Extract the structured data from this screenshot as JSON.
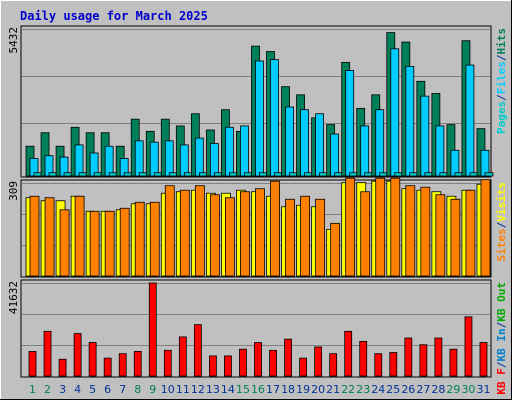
{
  "title": "Daily usage for March 2025",
  "colors": {
    "background": "#C0C0C0",
    "panel": "#C0C0C0",
    "grid": "#808080",
    "title": "#0000CC",
    "day_weekday": "#003399",
    "day_weekend": "#00805A",
    "hits": "#00805A",
    "files": "#00CCFF",
    "pages": "#00CCCC",
    "visits": "#FFFF00",
    "sites": "#FF8000",
    "kbin": "#0080CC",
    "kbout": "#00AA00",
    "kbf": "#FF0000"
  },
  "chart_data": [
    {
      "type": "bar",
      "name": "hits-files-pages",
      "axis_max_label": "5432",
      "ymax": 5432,
      "legend": [
        {
          "label": "Pages",
          "color": "#00CCCC"
        },
        {
          "label": "/",
          "color": "#003399"
        },
        {
          "label": "Files",
          "color": "#00CCFF"
        },
        {
          "label": "/",
          "color": "#003399"
        },
        {
          "label": "Hits",
          "color": "#00805A"
        }
      ],
      "categories": [
        "1",
        "2",
        "3",
        "4",
        "5",
        "6",
        "7",
        "8",
        "9",
        "10",
        "11",
        "12",
        "13",
        "14",
        "15",
        "16",
        "17",
        "18",
        "19",
        "20",
        "21",
        "22",
        "23",
        "24",
        "25",
        "26",
        "27",
        "28",
        "29",
        "30",
        "31"
      ],
      "series": [
        {
          "name": "Hits",
          "color": "#00805A",
          "values": [
            1100,
            1600,
            1100,
            1800,
            1600,
            1600,
            1100,
            2100,
            1650,
            2100,
            1850,
            2300,
            1700,
            2450,
            1650,
            4800,
            4600,
            3300,
            3000,
            2150,
            1900,
            4200,
            2500,
            3000,
            5300,
            4950,
            3500,
            3050,
            1900,
            5000,
            1750
          ]
        },
        {
          "name": "Files",
          "color": "#00CCFF",
          "values": [
            650,
            750,
            700,
            1150,
            850,
            1100,
            650,
            1300,
            1250,
            1300,
            1150,
            1400,
            1200,
            1800,
            1850,
            4250,
            4300,
            2550,
            2450,
            2300,
            1550,
            3900,
            1850,
            2450,
            4700,
            4050,
            2950,
            1850,
            950,
            4100,
            950
          ]
        },
        {
          "name": "Pages",
          "color": "#00CCCC",
          "values": [
            120,
            120,
            120,
            120,
            120,
            120,
            120,
            120,
            120,
            120,
            120,
            120,
            120,
            120,
            120,
            120,
            120,
            120,
            120,
            120,
            120,
            120,
            120,
            120,
            120,
            120,
            120,
            120,
            120,
            120,
            120
          ]
        }
      ]
    },
    {
      "type": "bar",
      "name": "visits-sites",
      "axis_max_label": "309",
      "ymax": 309,
      "legend": [
        {
          "label": "Sites",
          "color": "#FF8000"
        },
        {
          "label": "/",
          "color": "#003399"
        },
        {
          "label": "Visits",
          "color": "#FFFF00"
        }
      ],
      "categories": [
        "1",
        "2",
        "3",
        "4",
        "5",
        "6",
        "7",
        "8",
        "9",
        "10",
        "11",
        "12",
        "13",
        "14",
        "15",
        "16",
        "17",
        "18",
        "19",
        "20",
        "21",
        "22",
        "23",
        "24",
        "25",
        "26",
        "27",
        "28",
        "29",
        "30",
        "31"
      ],
      "series": [
        {
          "name": "Visits",
          "color": "#FFFF00",
          "values": [
            260,
            250,
            250,
            265,
            215,
            215,
            220,
            240,
            240,
            275,
            280,
            285,
            275,
            275,
            285,
            280,
            265,
            230,
            235,
            230,
            155,
            310,
            310,
            315,
            315,
            290,
            285,
            280,
            265,
            285,
            305
          ]
        },
        {
          "name": "Sites",
          "color": "#FF8000",
          "values": [
            265,
            260,
            220,
            265,
            215,
            215,
            225,
            245,
            245,
            300,
            285,
            300,
            270,
            260,
            280,
            290,
            315,
            255,
            265,
            255,
            175,
            325,
            280,
            325,
            325,
            300,
            295,
            270,
            255,
            285,
            320
          ]
        }
      ]
    },
    {
      "type": "bar",
      "name": "kbytes",
      "axis_max_label": "41632",
      "ymax": 41632,
      "legend": [
        {
          "label": "KB F",
          "color": "#FF0000"
        },
        {
          "label": "/",
          "color": "#003399"
        },
        {
          "label": "KB In",
          "color": "#0080CC"
        },
        {
          "label": "/",
          "color": "#003399"
        },
        {
          "label": "KB Out",
          "color": "#00AA00"
        }
      ],
      "categories": [
        "1",
        "2",
        "3",
        "4",
        "5",
        "6",
        "7",
        "8",
        "9",
        "10",
        "11",
        "12",
        "13",
        "14",
        "15",
        "16",
        "17",
        "18",
        "19",
        "20",
        "21",
        "22",
        "23",
        "24",
        "25",
        "26",
        "27",
        "28",
        "29",
        "30",
        "31"
      ],
      "series": [
        {
          "name": "KB F",
          "color": "#FF0000",
          "values": [
            11000,
            20000,
            7500,
            19000,
            15000,
            8000,
            10000,
            11000,
            41632,
            11500,
            17500,
            23000,
            9000,
            9000,
            12000,
            15000,
            11500,
            16500,
            8000,
            13000,
            10000,
            20000,
            15500,
            10000,
            10500,
            17000,
            14000,
            17000,
            12000,
            26500,
            15000
          ]
        }
      ]
    }
  ]
}
